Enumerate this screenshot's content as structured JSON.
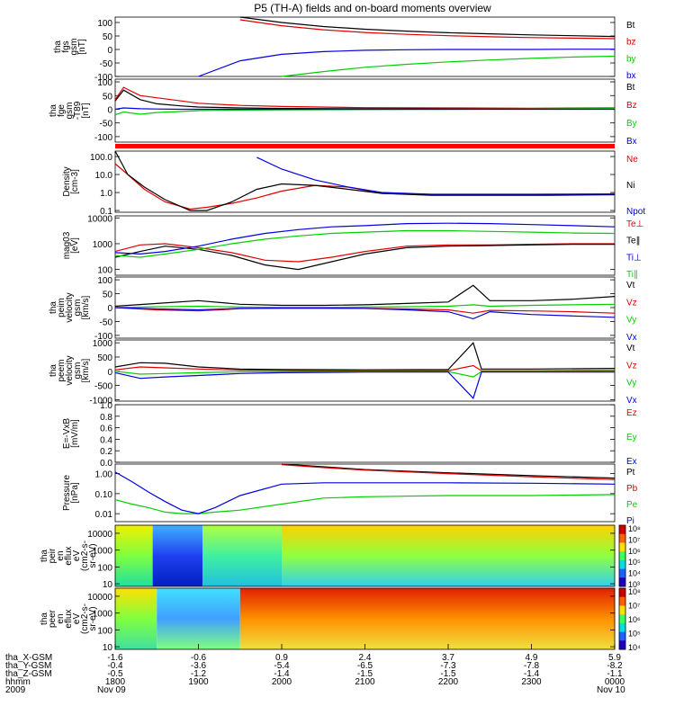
{
  "title": "P5 (TH-A) fields and on-board moments overview",
  "colors": {
    "black": "#000000",
    "red": "#e00000",
    "green": "#00d000",
    "blue": "#0000e0",
    "bar": "#ff0000"
  },
  "ephemeris": {
    "row_labels": [
      "tha_X-GSM",
      "tha_Y-GSM",
      "tha_Z-GSM",
      "hhmm",
      "2009"
    ],
    "columns": [
      [
        "-1.6",
        "-0.4",
        "-0.5",
        "1800",
        "Nov 09"
      ],
      [
        "-0.6",
        "-3.6",
        "-1.2",
        "1900",
        ""
      ],
      [
        "0.9",
        "-5.4",
        "-1.4",
        "2000",
        ""
      ],
      [
        "2.4",
        "-6.5",
        "-1.5",
        "2100",
        ""
      ],
      [
        "3.7",
        "-7.3",
        "-1.5",
        "2200",
        ""
      ],
      [
        "4.9",
        "-7.8",
        "-1.4",
        "2300",
        ""
      ],
      [
        "5.9",
        "-8.2",
        "-1.1",
        "0000",
        "Nov 10"
      ]
    ]
  },
  "chart_data": [
    {
      "type": "line",
      "panel": "fgs",
      "ylabel_lines": [
        "tha",
        "fgs",
        "gsm",
        "[nT]"
      ],
      "ylim": [
        -100,
        120
      ],
      "yticks": [
        "100",
        "50",
        "0",
        "-50",
        "-100"
      ],
      "ytick_values": [
        100,
        50,
        0,
        -50,
        -100
      ],
      "x": [
        0,
        0.5,
        1,
        1.5,
        2,
        2.5,
        3,
        3.5,
        4,
        4.5,
        5,
        5.5,
        6
      ],
      "series": [
        {
          "name": "Bt",
          "color": "black",
          "values": [
            null,
            null,
            null,
            120,
            100,
            85,
            75,
            68,
            62,
            58,
            54,
            51,
            48
          ]
        },
        {
          "name": "bz",
          "color": "red",
          "values": [
            null,
            null,
            null,
            110,
            88,
            73,
            63,
            56,
            51,
            47,
            44,
            42,
            40
          ]
        },
        {
          "name": "by",
          "color": "green",
          "values": [
            null,
            null,
            null,
            null,
            -100,
            -82,
            -66,
            -55,
            -46,
            -39,
            -33,
            -28,
            -25
          ]
        },
        {
          "name": "bx",
          "color": "blue",
          "values": [
            null,
            null,
            -100,
            -42,
            -18,
            -8,
            -3,
            -1,
            0,
            0,
            0,
            1,
            1
          ]
        }
      ]
    },
    {
      "type": "line",
      "panel": "fge",
      "ylabel_lines": [
        "tha",
        "fge",
        "gsm",
        "-T89",
        "[nT]"
      ],
      "ylim": [
        -120,
        110
      ],
      "yticks": [
        "100",
        "50",
        "0",
        "-50",
        "-100"
      ],
      "ytick_values": [
        100,
        50,
        0,
        -50,
        -100
      ],
      "x": [
        0,
        0.1,
        0.3,
        0.5,
        0.8,
        1,
        1.5,
        2,
        3,
        4,
        5,
        6
      ],
      "series": [
        {
          "name": "Bt",
          "color": "black",
          "values": [
            30,
            70,
            35,
            20,
            12,
            8,
            5,
            3,
            2,
            2,
            2,
            3
          ]
        },
        {
          "name": "Bz",
          "color": "red",
          "values": [
            35,
            80,
            50,
            42,
            30,
            22,
            14,
            10,
            6,
            5,
            4,
            5
          ]
        },
        {
          "name": "By",
          "color": "green",
          "values": [
            -20,
            -10,
            -18,
            -12,
            -8,
            -5,
            -3,
            -2,
            -1,
            0,
            1,
            3
          ]
        },
        {
          "name": "Bx",
          "color": "blue",
          "values": [
            0,
            5,
            2,
            1,
            0,
            0,
            0,
            0,
            0,
            0,
            0,
            0
          ]
        }
      ],
      "legend_overlap": "Bz"
    },
    {
      "type": "line",
      "panel": "density",
      "yscale": "log",
      "ylabel_lines": [
        "Density",
        "[cm-3]"
      ],
      "ylim": [
        0.08,
        200
      ],
      "yticks": [
        "100.0",
        "10.0",
        "1.0",
        "0.1"
      ],
      "ytick_values": [
        100,
        10,
        1,
        0.1
      ],
      "x": [
        0,
        0.15,
        0.35,
        0.6,
        0.9,
        1.1,
        1.4,
        1.7,
        2.0,
        2.4,
        2.8,
        3.2,
        3.8,
        4.5,
        5.2,
        6
      ],
      "series": [
        {
          "name": "Ne",
          "color": "red",
          "values": [
            40,
            10,
            1.5,
            0.3,
            0.12,
            0.15,
            0.25,
            0.5,
            1.2,
            2.5,
            2.0,
            0.9,
            0.75,
            0.75,
            0.8,
            0.85
          ]
        },
        {
          "name": "Ni",
          "color": "black",
          "values": [
            200,
            10,
            2.0,
            0.4,
            0.1,
            0.1,
            0.3,
            1.5,
            3.0,
            2.5,
            1.5,
            0.9,
            0.7,
            0.7,
            0.7,
            0.75
          ]
        },
        {
          "name": "Npot",
          "color": "blue",
          "values": [
            null,
            null,
            null,
            null,
            null,
            null,
            null,
            90,
            20,
            5,
            2.0,
            1.0,
            0.8,
            0.8,
            0.8,
            0.8
          ]
        }
      ]
    },
    {
      "type": "line",
      "panel": "temperature",
      "yscale": "log",
      "ylabel_lines": [
        "mag03",
        "[eV]"
      ],
      "ylim": [
        60,
        12000
      ],
      "yticks": [
        "10000",
        "1000",
        "100"
      ],
      "ytick_values": [
        10000,
        1000,
        100
      ],
      "x": [
        0,
        0.3,
        0.6,
        1,
        1.4,
        1.8,
        2.2,
        2.6,
        3.0,
        3.5,
        4,
        4.5,
        5,
        5.5,
        6
      ],
      "series": [
        {
          "name": "Te⊥",
          "color": "red",
          "values": [
            500,
            900,
            1000,
            700,
            450,
            230,
            200,
            300,
            500,
            800,
            900,
            900,
            950,
            1000,
            1000
          ]
        },
        {
          "name": "Te∥",
          "color": "black",
          "values": [
            300,
            500,
            800,
            600,
            350,
            150,
            100,
            200,
            400,
            700,
            800,
            850,
            900,
            950,
            950
          ]
        },
        {
          "name": "Ti⊥",
          "color": "blue",
          "values": [
            450,
            400,
            500,
            800,
            1500,
            2500,
            3500,
            4500,
            5000,
            6000,
            6200,
            6000,
            5500,
            5000,
            4500
          ]
        },
        {
          "name": "Ti∥",
          "color": "green",
          "values": [
            350,
            300,
            400,
            600,
            1000,
            1500,
            2000,
            2500,
            2800,
            3200,
            3200,
            3000,
            2800,
            2600,
            2500
          ]
        }
      ]
    },
    {
      "type": "line",
      "panel": "peim_velocity",
      "ylabel_lines": [
        "tha",
        "peim",
        "velocity",
        "gsm",
        "[km/s]"
      ],
      "ylim": [
        -110,
        110
      ],
      "yticks": [
        "100",
        "50",
        "0",
        "-50",
        "-100"
      ],
      "ytick_values": [
        100,
        50,
        0,
        -50,
        -100
      ],
      "x": [
        0,
        0.5,
        1,
        1.5,
        2,
        2.5,
        3,
        3.5,
        4,
        4.3,
        4.5,
        5,
        5.5,
        6
      ],
      "series": [
        {
          "name": "Vt",
          "color": "black",
          "values": [
            5,
            15,
            25,
            12,
            8,
            8,
            10,
            15,
            20,
            80,
            25,
            25,
            30,
            40
          ]
        },
        {
          "name": "Vz",
          "color": "red",
          "values": [
            0,
            -8,
            -12,
            -4,
            -2,
            -2,
            -3,
            -5,
            -8,
            -20,
            -10,
            -12,
            -15,
            -20
          ]
        },
        {
          "name": "Vy",
          "color": "green",
          "values": [
            0,
            3,
            5,
            2,
            1,
            1,
            2,
            3,
            5,
            10,
            5,
            8,
            10,
            12
          ]
        },
        {
          "name": "Vx",
          "color": "blue",
          "values": [
            0,
            -5,
            -8,
            -3,
            -2,
            -2,
            -3,
            -8,
            -15,
            -40,
            -15,
            -25,
            -30,
            -35
          ]
        }
      ]
    },
    {
      "type": "line",
      "panel": "peem_velocity",
      "ylabel_lines": [
        "tha",
        "peem",
        "velocity",
        "gsm",
        "[km/s]"
      ],
      "ylim": [
        -1050,
        1100
      ],
      "yticks": [
        "1000",
        "500",
        "0",
        "-500",
        "-1000"
      ],
      "ytick_values": [
        1000,
        500,
        0,
        -500,
        -1000
      ],
      "x": [
        0,
        0.3,
        0.6,
        1,
        1.5,
        2,
        3,
        4,
        4.3,
        4.4,
        5,
        6
      ],
      "series": [
        {
          "name": "Vt",
          "color": "black",
          "values": [
            150,
            300,
            280,
            150,
            80,
            60,
            50,
            60,
            1000,
            80,
            80,
            100
          ]
        },
        {
          "name": "Vz",
          "color": "red",
          "values": [
            50,
            150,
            120,
            80,
            40,
            30,
            20,
            20,
            200,
            20,
            20,
            30
          ]
        },
        {
          "name": "Vy",
          "color": "green",
          "values": [
            0,
            -100,
            -80,
            -50,
            -20,
            -10,
            -10,
            -10,
            -200,
            -10,
            -10,
            -10
          ]
        },
        {
          "name": "Vx",
          "color": "blue",
          "values": [
            -50,
            -250,
            -200,
            -150,
            -80,
            -50,
            -30,
            -30,
            -950,
            -30,
            -30,
            -30
          ]
        }
      ]
    },
    {
      "type": "line",
      "panel": "efield",
      "ylabel_lines": [
        "E=-VxB",
        "[mV/m]"
      ],
      "ylim": [
        0,
        1
      ],
      "yticks": [
        "1.0",
        "0.8",
        "0.6",
        "0.4",
        "0.2",
        "0.0"
      ],
      "ytick_values": [
        1,
        0.8,
        0.6,
        0.4,
        0.2,
        0
      ],
      "x": [],
      "series": [
        {
          "name": "Ez",
          "color": "red",
          "values": []
        },
        {
          "name": "Ey",
          "color": "green",
          "values": []
        },
        {
          "name": "Ex",
          "color": "blue",
          "values": []
        }
      ]
    },
    {
      "type": "line",
      "panel": "pressure",
      "yscale": "log",
      "ylabel_lines": [
        "Pressure",
        "[nPa]"
      ],
      "ylim": [
        0.004,
        3
      ],
      "yticks": [
        "1.00",
        "0.10",
        "0.01"
      ],
      "ytick_values": [
        1,
        0.1,
        0.01
      ],
      "x": [
        0,
        0.2,
        0.4,
        0.6,
        0.8,
        1.0,
        1.2,
        1.5,
        2,
        2.5,
        3,
        4,
        5,
        6
      ],
      "series": [
        {
          "name": "Pt",
          "color": "black",
          "values": [
            null,
            null,
            null,
            null,
            null,
            null,
            null,
            null,
            3,
            2.2,
            1.6,
            1.1,
            0.8,
            0.6
          ]
        },
        {
          "name": "Pb",
          "color": "red",
          "values": [
            null,
            null,
            null,
            null,
            null,
            null,
            null,
            null,
            2.8,
            2.0,
            1.5,
            1.0,
            0.7,
            0.5
          ]
        },
        {
          "name": "Pe",
          "color": "green",
          "values": [
            0.05,
            0.03,
            0.02,
            0.012,
            0.01,
            0.01,
            0.012,
            0.015,
            0.03,
            0.06,
            0.07,
            0.08,
            0.08,
            0.09
          ]
        },
        {
          "name": "Pi",
          "color": "blue",
          "values": [
            1.2,
            0.4,
            0.12,
            0.04,
            0.015,
            0.01,
            0.02,
            0.08,
            0.3,
            0.35,
            0.35,
            0.35,
            0.33,
            0.3
          ]
        }
      ]
    },
    {
      "type": "heatmap",
      "panel": "peir_spectrogram",
      "ylabel_lines": [
        "tha",
        "peir",
        "en",
        "eflux",
        "eV",
        "(cm2-s-",
        "sr-eV)"
      ],
      "ylim": [
        7,
        30000
      ],
      "yticks": [
        "10000",
        "1000",
        "100",
        "10"
      ],
      "ytick_values": [
        10000,
        1000,
        100,
        10
      ],
      "colorbar": {
        "ticks": [
          "10⁸",
          "10⁷",
          "10⁶",
          "10⁵",
          "10⁴",
          "10³"
        ],
        "range": [
          1000,
          100000000
        ]
      },
      "description_regions": [
        {
          "x0": 0.0,
          "x1": 0.45,
          "level": "high-green"
        },
        {
          "x0": 0.45,
          "x1": 1.05,
          "level": "low-blue"
        },
        {
          "x0": 1.05,
          "x1": 2.0,
          "level": "green-cyan"
        },
        {
          "x0": 2.0,
          "x1": 6.0,
          "level": "yellow-top cyan-bottom"
        }
      ]
    },
    {
      "type": "heatmap",
      "panel": "peer_spectrogram",
      "ylabel_lines": [
        "tha",
        "peer",
        "en",
        "eflux",
        "eV",
        "(cm2-s-",
        "sr-eV)"
      ],
      "ylim": [
        7,
        30000
      ],
      "yticks": [
        "10000",
        "1000",
        "100",
        "10"
      ],
      "ytick_values": [
        10000,
        1000,
        100,
        10
      ],
      "colorbar": {
        "ticks": [
          "10⁸",
          "10⁷",
          "10⁶",
          "10⁵",
          "10⁴"
        ],
        "range": [
          3000,
          100000000
        ]
      },
      "description_regions": [
        {
          "x0": 0.0,
          "x1": 0.5,
          "level": "green"
        },
        {
          "x0": 0.5,
          "x1": 1.5,
          "level": "cyan-blue"
        },
        {
          "x0": 1.5,
          "x1": 6.0,
          "level": "red-top yellow-bottom"
        }
      ]
    }
  ]
}
